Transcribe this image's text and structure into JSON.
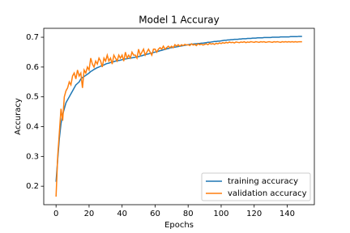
{
  "chart_data": {
    "type": "line",
    "title": "Model 1 Accuray",
    "x_label": "Epochs",
    "y_label": "Accuracy",
    "x": [
      0,
      1,
      2,
      3,
      4,
      5,
      6,
      7,
      8,
      9,
      10,
      11,
      12,
      13,
      14,
      15,
      16,
      17,
      18,
      19,
      20,
      21,
      22,
      23,
      24,
      25,
      26,
      27,
      28,
      29,
      30,
      31,
      32,
      33,
      34,
      35,
      36,
      37,
      38,
      39,
      40,
      41,
      42,
      43,
      44,
      45,
      46,
      47,
      48,
      49,
      50,
      51,
      52,
      53,
      54,
      55,
      56,
      57,
      58,
      59,
      60,
      61,
      62,
      63,
      64,
      65,
      66,
      67,
      68,
      69,
      70,
      71,
      72,
      73,
      74,
      75,
      76,
      77,
      78,
      79,
      80,
      81,
      82,
      83,
      84,
      85,
      86,
      87,
      88,
      89,
      90,
      91,
      92,
      93,
      94,
      95,
      96,
      97,
      98,
      99,
      100,
      101,
      102,
      103,
      104,
      105,
      106,
      107,
      108,
      109,
      110,
      111,
      112,
      113,
      114,
      115,
      116,
      117,
      118,
      119,
      120,
      121,
      122,
      123,
      124,
      125,
      126,
      127,
      128,
      129,
      130,
      131,
      132,
      133,
      134,
      135,
      136,
      137,
      138,
      139,
      140,
      141,
      142,
      143,
      144,
      145,
      146,
      147,
      148,
      149
    ],
    "series": [
      {
        "name": "training accuracy",
        "color": "#1f77b4",
        "values": [
          0.215,
          0.29,
          0.36,
          0.41,
          0.44,
          0.46,
          0.48,
          0.49,
          0.5,
          0.51,
          0.52,
          0.53,
          0.54,
          0.545,
          0.55,
          0.56,
          0.565,
          0.568,
          0.572,
          0.576,
          0.58,
          0.585,
          0.588,
          0.592,
          0.595,
          0.598,
          0.6,
          0.603,
          0.605,
          0.607,
          0.61,
          0.612,
          0.613,
          0.615,
          0.617,
          0.618,
          0.62,
          0.621,
          0.622,
          0.623,
          0.625,
          0.626,
          0.627,
          0.628,
          0.629,
          0.63,
          0.631,
          0.632,
          0.633,
          0.634,
          0.635,
          0.637,
          0.638,
          0.64,
          0.641,
          0.643,
          0.644,
          0.646,
          0.647,
          0.649,
          0.65,
          0.652,
          0.653,
          0.655,
          0.656,
          0.658,
          0.659,
          0.661,
          0.662,
          0.664,
          0.665,
          0.666,
          0.667,
          0.668,
          0.669,
          0.67,
          0.671,
          0.672,
          0.673,
          0.674,
          0.675,
          0.676,
          0.677,
          0.677,
          0.678,
          0.678,
          0.679,
          0.679,
          0.68,
          0.68,
          0.681,
          0.682,
          0.683,
          0.683,
          0.684,
          0.685,
          0.686,
          0.686,
          0.687,
          0.687,
          0.688,
          0.689,
          0.69,
          0.69,
          0.691,
          0.691,
          0.692,
          0.692,
          0.693,
          0.693,
          0.693,
          0.694,
          0.694,
          0.695,
          0.695,
          0.695,
          0.696,
          0.696,
          0.696,
          0.697,
          0.697,
          0.697,
          0.698,
          0.698,
          0.698,
          0.698,
          0.699,
          0.699,
          0.699,
          0.699,
          0.699,
          0.7,
          0.7,
          0.7,
          0.7,
          0.7,
          0.701,
          0.701,
          0.701,
          0.701,
          0.701,
          0.701,
          0.702,
          0.702,
          0.702,
          0.702,
          0.702,
          0.703,
          0.703,
          0.703
        ]
      },
      {
        "name": "validation accuracy",
        "color": "#ff7f0e",
        "values": [
          0.165,
          0.3,
          0.38,
          0.46,
          0.42,
          0.5,
          0.52,
          0.53,
          0.55,
          0.54,
          0.57,
          0.58,
          0.56,
          0.59,
          0.57,
          0.58,
          0.53,
          0.59,
          0.58,
          0.6,
          0.59,
          0.63,
          0.61,
          0.6,
          0.62,
          0.61,
          0.63,
          0.62,
          0.6,
          0.63,
          0.62,
          0.64,
          0.62,
          0.63,
          0.61,
          0.64,
          0.63,
          0.62,
          0.64,
          0.63,
          0.64,
          0.62,
          0.65,
          0.63,
          0.64,
          0.63,
          0.65,
          0.64,
          0.64,
          0.63,
          0.66,
          0.64,
          0.65,
          0.66,
          0.64,
          0.65,
          0.66,
          0.65,
          0.64,
          0.66,
          0.66,
          0.65,
          0.66,
          0.665,
          0.66,
          0.67,
          0.66,
          0.665,
          0.67,
          0.665,
          0.67,
          0.665,
          0.675,
          0.67,
          0.675,
          0.67,
          0.675,
          0.672,
          0.676,
          0.674,
          0.675,
          0.672,
          0.678,
          0.674,
          0.676,
          0.672,
          0.678,
          0.675,
          0.677,
          0.674,
          0.676,
          0.678,
          0.675,
          0.68,
          0.677,
          0.679,
          0.676,
          0.68,
          0.678,
          0.681,
          0.679,
          0.682,
          0.68,
          0.683,
          0.681,
          0.684,
          0.682,
          0.683,
          0.681,
          0.684,
          0.683,
          0.682,
          0.684,
          0.683,
          0.685,
          0.682,
          0.684,
          0.683,
          0.685,
          0.684,
          0.683,
          0.685,
          0.684,
          0.683,
          0.685,
          0.684,
          0.685,
          0.683,
          0.684,
          0.685,
          0.684,
          0.683,
          0.685,
          0.684,
          0.685,
          0.684,
          0.683,
          0.685,
          0.684,
          0.685,
          0.684,
          0.685,
          0.684,
          0.685,
          0.684,
          0.685,
          0.684,
          0.685,
          0.685,
          0.685
        ]
      }
    ],
    "xlim": [
      -7.45,
      156.45
    ],
    "xticks": [
      0,
      20,
      40,
      60,
      80,
      100,
      120,
      140
    ],
    "ylim": [
      0.138,
      0.73
    ],
    "yticks": [
      0.2,
      0.3,
      0.4,
      0.5,
      0.6,
      0.7
    ],
    "legend": "lower right"
  }
}
